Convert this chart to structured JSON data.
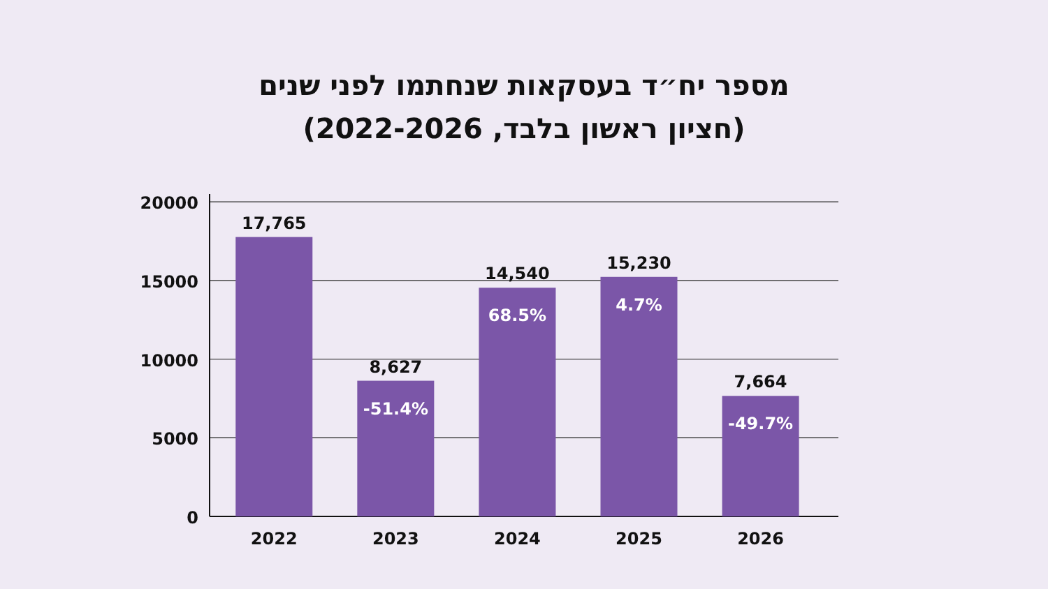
{
  "chart_data": {
    "type": "bar",
    "title": "מספר יח״ד בעסקאות שנחתמו לפני שנים",
    "subtitle": "(חציון ראשון בלבד, 2022-2026)",
    "categories": [
      "2022",
      "2023",
      "2024",
      "2025",
      "2026"
    ],
    "values": [
      17765,
      8627,
      14540,
      15230,
      7664
    ],
    "value_labels": [
      "17,765",
      "8,627",
      "14,540",
      "15,230",
      "7,664"
    ],
    "color": "#7b56a8",
    "annotations": [
      {
        "text": "-51.4%",
        "x": "2023",
        "y": 8627
      },
      {
        "text": "68.5%",
        "x": "2024",
        "y": 14540
      },
      {
        "text": "4.7%",
        "x": "2025",
        "y": 15230
      },
      {
        "text": "-49.7%",
        "x": "2026",
        "y": 7664
      }
    ],
    "ylim": [
      0,
      20500
    ],
    "yticks": [
      0,
      5000,
      10000,
      15000,
      20000
    ],
    "grid": "y"
  }
}
